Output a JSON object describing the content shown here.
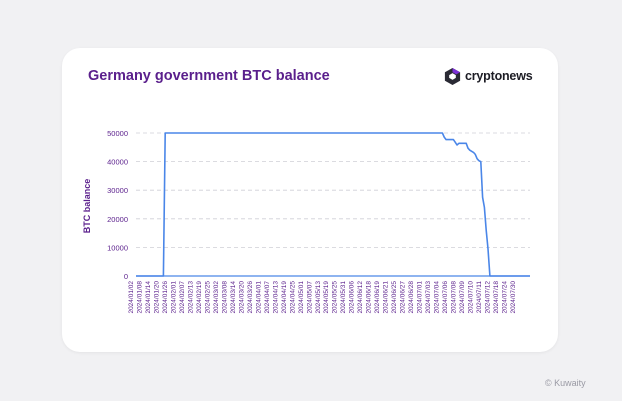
{
  "header": {
    "title": "Germany government BTC balance",
    "brand": "cryptonews"
  },
  "watermark": "© Kuwaity",
  "colors": {
    "title": "#5a1f8c",
    "axis_text": "#5a1f8c",
    "line": "#4a86e8",
    "grid": "#cfcfd6",
    "brand_dark": "#2a2a34",
    "brand_accent": "#7b2fd6"
  },
  "chart_data": {
    "type": "line",
    "title": "Germany government BTC balance",
    "xlabel": "",
    "ylabel": "BTC balance",
    "ylim": [
      0,
      50000
    ],
    "yticks": [
      0,
      10000,
      20000,
      30000,
      40000,
      50000
    ],
    "xlim": [
      "2024-01-02",
      "2024-08-05"
    ],
    "xtick_labels": [
      "2024/01/02",
      "2024/01/08",
      "2024/01/14",
      "2024/01/20",
      "2024/01/26",
      "2024/02/01",
      "2024/02/07",
      "2024/02/13",
      "2024/02/19",
      "2024/02/25",
      "2024/03/02",
      "2024/03/08",
      "2024/03/14",
      "2024/03/20",
      "2024/03/26",
      "2024/04/01",
      "2024/04/07",
      "2024/04/13",
      "2024/04/19",
      "2024/04/25",
      "2024/05/01",
      "2024/05/07",
      "2024/05/13",
      "2024/05/19",
      "2024/05/25",
      "2024/05/31",
      "2024/06/06",
      "2024/06/12",
      "2024/06/18",
      "2024/06/19",
      "2024/06/21",
      "2024/06/25",
      "2024/06/27",
      "2024/06/28",
      "2024/07/01",
      "2024/07/03",
      "2024/07/04",
      "2024/07/06",
      "2024/07/08",
      "2024/07/09",
      "2024/07/10",
      "2024/07/11",
      "2024/07/12",
      "2024/07/18",
      "2024/07/24",
      "2024/07/30"
    ],
    "grid": "horizontal-dashed",
    "legend": "none",
    "series": [
      {
        "points": [
          [
            "2024-01-02",
            0
          ],
          [
            "2024-01-17",
            0
          ],
          [
            "2024-01-18",
            50000
          ],
          [
            "2024-06-18",
            50000
          ],
          [
            "2024-06-19",
            48500
          ],
          [
            "2024-06-20",
            47700
          ],
          [
            "2024-06-24",
            47700
          ],
          [
            "2024-06-25",
            46800
          ],
          [
            "2024-06-26",
            45800
          ],
          [
            "2024-06-27",
            46400
          ],
          [
            "2024-07-01",
            46400
          ],
          [
            "2024-07-02",
            44700
          ],
          [
            "2024-07-03",
            44000
          ],
          [
            "2024-07-05",
            43200
          ],
          [
            "2024-07-06",
            42500
          ],
          [
            "2024-07-07",
            41000
          ],
          [
            "2024-07-08",
            40300
          ],
          [
            "2024-07-09",
            40000
          ],
          [
            "2024-07-10",
            27500
          ],
          [
            "2024-07-11",
            24000
          ],
          [
            "2024-07-12",
            16000
          ],
          [
            "2024-07-13",
            9500
          ],
          [
            "2024-07-14",
            0
          ],
          [
            "2024-08-05",
            0
          ]
        ]
      }
    ]
  }
}
